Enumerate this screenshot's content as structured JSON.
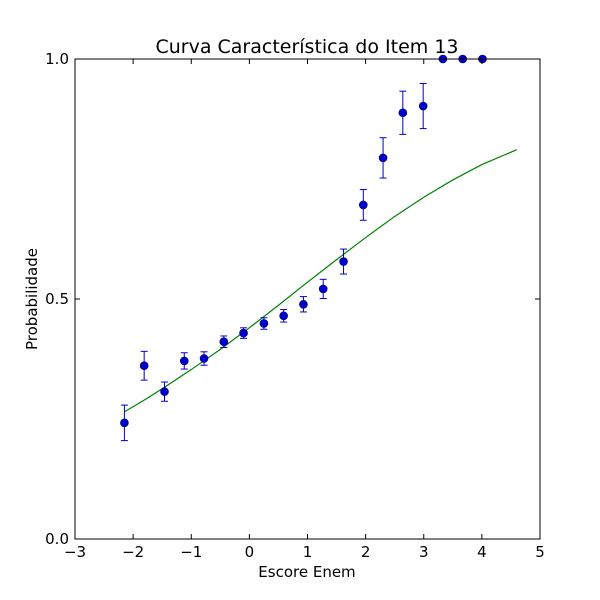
{
  "chart_data": {
    "type": "scatter",
    "title": "Curva Característica do Item 13",
    "xlabel": "Escore Enem",
    "ylabel": "Probabilidade",
    "xlim": [
      -3,
      5
    ],
    "ylim": [
      0,
      1
    ],
    "xticks": [
      -3,
      -2,
      -1,
      0,
      1,
      2,
      3,
      4,
      5
    ],
    "xtick_labels": [
      "−3",
      "−2",
      "−1",
      "0",
      "1",
      "2",
      "3",
      "4",
      "5"
    ],
    "yticks": [
      0,
      0.5,
      1
    ],
    "ytick_labels": [
      "0.0",
      "0.5",
      "1.0"
    ],
    "grid": false,
    "colors": {
      "points": "#0000cc",
      "curve": "#008000"
    },
    "series": [
      {
        "kind": "points_with_error",
        "x": [
          -2.15,
          -1.81,
          -1.46,
          -1.12,
          -0.78,
          -0.44,
          -0.1,
          0.25,
          0.59,
          0.93,
          1.27,
          1.62,
          1.96,
          2.3,
          2.64,
          2.99,
          3.33,
          3.67,
          4.01
        ],
        "y": [
          0.242,
          0.361,
          0.307,
          0.371,
          0.376,
          0.411,
          0.429,
          0.449,
          0.465,
          0.489,
          0.521,
          0.578,
          0.696,
          0.794,
          0.888,
          0.902,
          1.0,
          1.0,
          1.0
        ],
        "yerr": [
          0.037,
          0.03,
          0.02,
          0.017,
          0.014,
          0.012,
          0.011,
          0.012,
          0.013,
          0.016,
          0.02,
          0.026,
          0.032,
          0.042,
          0.045,
          0.047,
          0.0,
          0.0,
          0.0
        ]
      },
      {
        "kind": "curve",
        "x": [
          -2.15,
          -1.8,
          -1.5,
          -1.0,
          -0.5,
          0.0,
          0.5,
          1.0,
          1.5,
          2.0,
          2.5,
          3.0,
          3.5,
          4.0,
          4.6
        ],
        "y": [
          0.265,
          0.29,
          0.313,
          0.353,
          0.395,
          0.44,
          0.487,
          0.535,
          0.582,
          0.628,
          0.672,
          0.712,
          0.748,
          0.78,
          0.811
        ]
      }
    ]
  }
}
